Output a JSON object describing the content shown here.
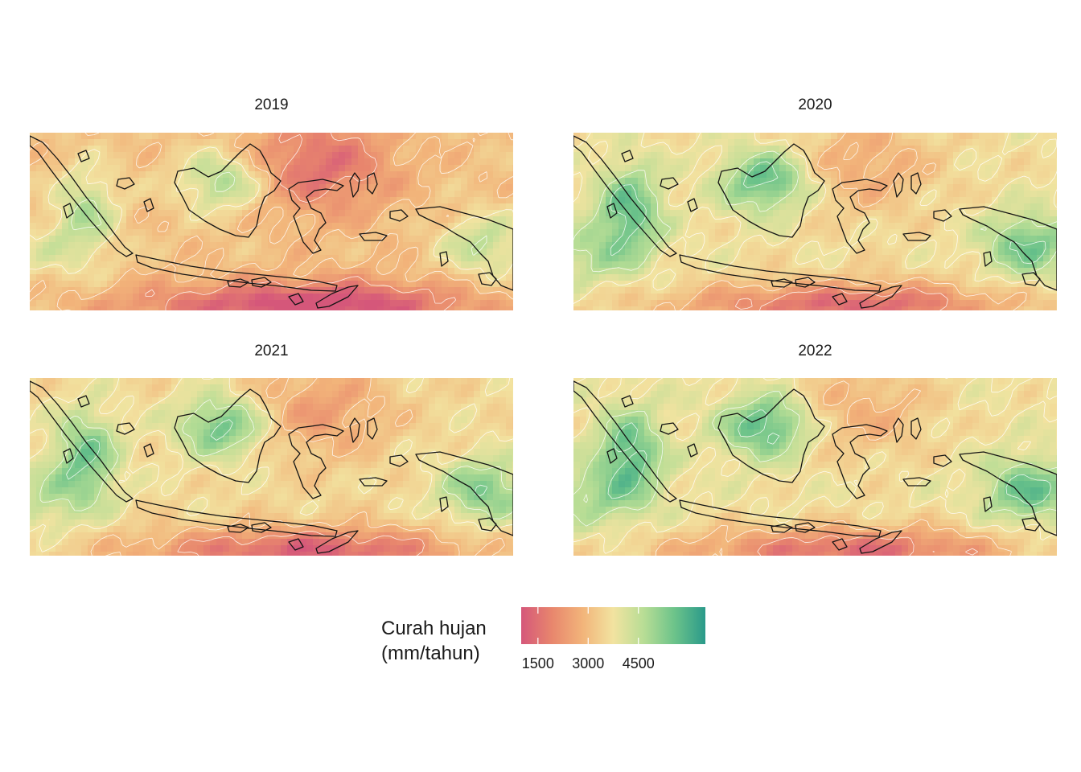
{
  "panels": [
    {
      "id": "p2019",
      "year": "2019",
      "wet": 0.28
    },
    {
      "id": "p2020",
      "year": "2020",
      "wet": 0.62
    },
    {
      "id": "p2021",
      "year": "2021",
      "wet": 0.55
    },
    {
      "id": "p2022",
      "year": "2022",
      "wet": 0.66
    }
  ],
  "legend": {
    "title_line1": "Curah hujan",
    "title_line2": "(mm/tahun)",
    "ticks": [
      {
        "value": 1500,
        "label": "1500"
      },
      {
        "value": 3000,
        "label": "3000"
      },
      {
        "value": 4500,
        "label": "4500"
      }
    ],
    "range": [
      1000,
      6500
    ],
    "colors": [
      "#d5577a",
      "#e8866d",
      "#f2b47a",
      "#f2e3a0",
      "#b7dd95",
      "#6cc38a",
      "#2a9a8a"
    ]
  },
  "colors": {
    "coastline": "#141414",
    "contour": "#ffffff"
  }
}
